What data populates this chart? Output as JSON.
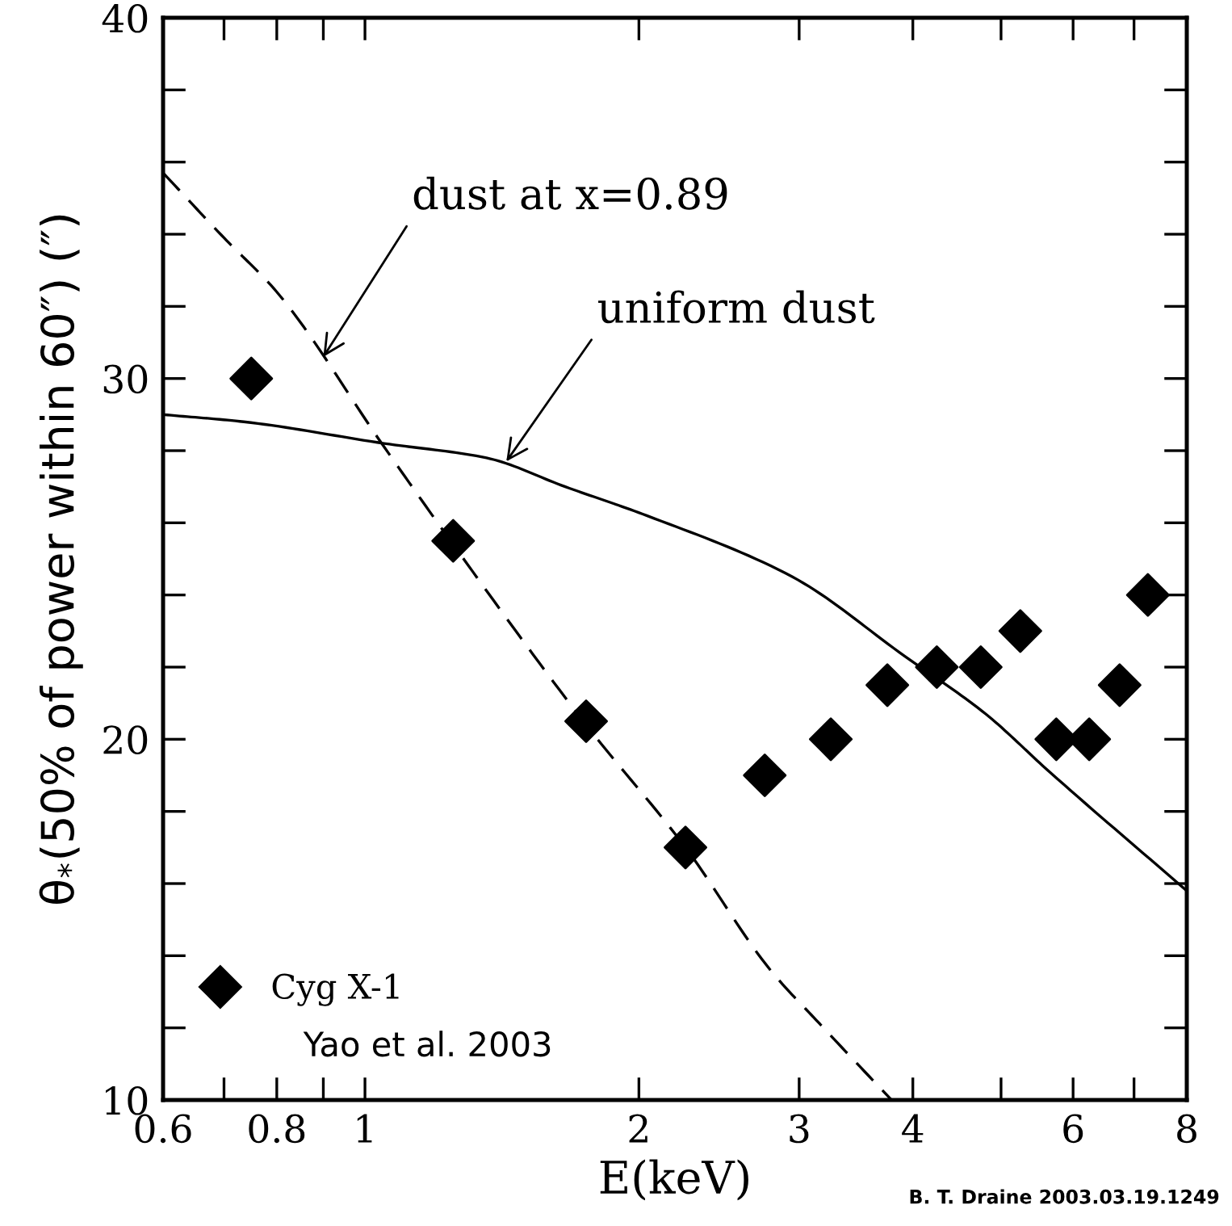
{
  "chart_data": {
    "type": "scatter",
    "xlabel": "E(keV)",
    "ylabel": "θ$_{*}$(50% of power within 60″) (″)",
    "log": "x",
    "xlim": [
      0.6,
      8
    ],
    "ylim": [
      10,
      40
    ],
    "xticks": [
      0.6,
      {
        "value": 0.7,
        "label": null
      },
      0.8,
      {
        "value": 0.9,
        "label": null
      },
      1,
      2,
      3,
      4,
      {
        "value": 5,
        "label": null
      },
      6,
      {
        "value": 7,
        "label": null
      },
      8
    ],
    "yticks": [
      10,
      {
        "value": 12,
        "label": null
      },
      {
        "value": 14,
        "label": null
      },
      {
        "value": 16,
        "label": null
      },
      {
        "value": 18,
        "label": null
      },
      20,
      {
        "value": 22,
        "label": null
      },
      {
        "value": 24,
        "label": null
      },
      {
        "value": 26,
        "label": null
      },
      {
        "value": 28,
        "label": null
      },
      30,
      {
        "value": 32,
        "label": null
      },
      {
        "value": 34,
        "label": null
      },
      {
        "value": 36,
        "label": null
      },
      {
        "value": 38,
        "label": null
      },
      40
    ],
    "grid": false,
    "legend": "bottom left",
    "series": [
      {
        "name": "Cyg X-1",
        "marker": "diamond",
        "color": "#000000",
        "x": [
          0.75,
          1.25,
          1.75,
          2.25,
          2.75,
          3.25,
          3.75,
          4.25,
          4.75,
          5.25,
          5.75,
          6.25,
          6.75,
          7.25
        ],
        "values": [
          30,
          25.5,
          20.5,
          17,
          19,
          20,
          21.5,
          22,
          22,
          23,
          20,
          20,
          21.5,
          24
        ]
      },
      {
        "type": "line",
        "marker": "none",
        "line_style": "solid",
        "color": "#000000",
        "x": [
          0.6,
          0.736,
          1.05,
          1.36,
          1.66,
          2.04,
          2.95,
          3.92,
          4.81,
          5.65,
          8
        ],
        "values": [
          29.0,
          28.8,
          28.2,
          27.8,
          27.0,
          26.2,
          24.5,
          22.3,
          20.7,
          19.1,
          15.8
        ]
      },
      {
        "type": "line",
        "marker": "none",
        "line_style": "dashed",
        "color": "#000000",
        "x": [
          0.6,
          0.7,
          0.8,
          1.05,
          1.25,
          1.75,
          2.25,
          2.79,
          3.15,
          3.79
        ],
        "values": [
          35.7,
          33.9,
          32.4,
          28.1,
          25.4,
          20.4,
          17.0,
          13.6,
          12.15,
          10
        ]
      }
    ],
    "annotations": [
      {
        "text": "dust at x=0.89",
        "x": 0.9,
        "y": 30.6
      },
      {
        "text": "uniform dust",
        "x": 1.43,
        "y": 27.7
      },
      "Yao et al. 2003",
      "B. T. Draine 2003.03.19.1249"
    ]
  }
}
